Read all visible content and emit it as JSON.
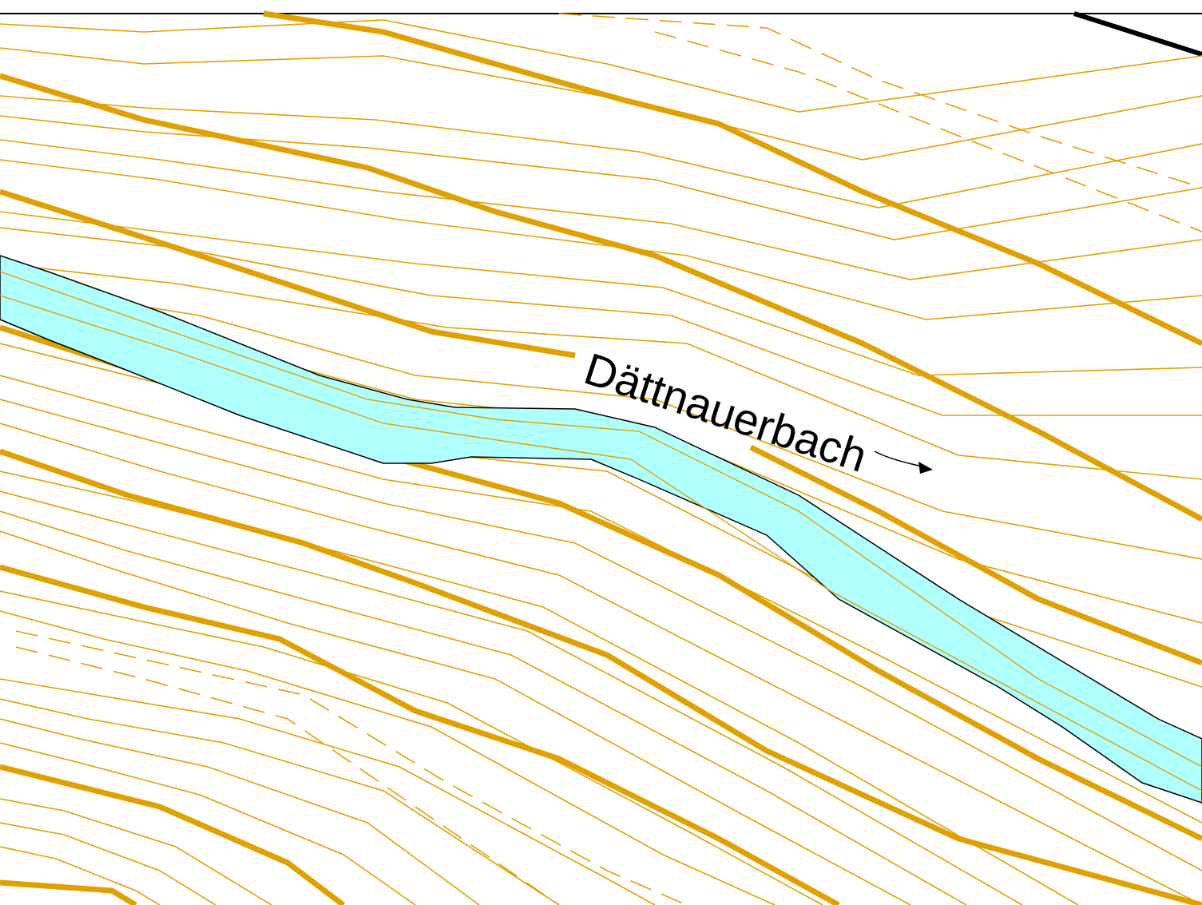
{
  "map": {
    "stream_label": "Dättnauerbach",
    "flow_direction": "arrow-icon",
    "colors": {
      "contour": "#E0A000",
      "water_fill": "#B0FFFF",
      "water_outline": "#000000",
      "boundary": "#000000",
      "background": "#FFFFFF"
    }
  }
}
